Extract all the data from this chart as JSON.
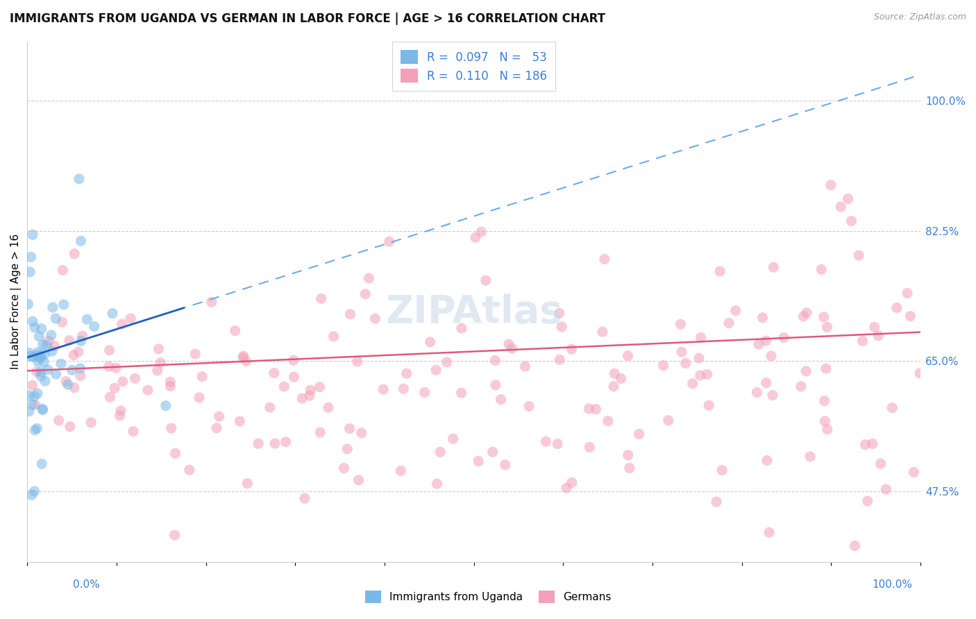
{
  "title": "IMMIGRANTS FROM UGANDA VS GERMAN IN LABOR FORCE | AGE > 16 CORRELATION CHART",
  "source": "Source: ZipAtlas.com",
  "ylabel": "In Labor Force | Age > 16",
  "right_ytick_labels": [
    "100.0%",
    "82.5%",
    "65.0%",
    "47.5%"
  ],
  "right_ytick_values": [
    1.0,
    0.825,
    0.65,
    0.475
  ],
  "uganda_dot_color": "#7ab8e8",
  "german_dot_color": "#f4a0b8",
  "uganda_trend_solid_color": "#2060c0",
  "uganda_trend_dash_color": "#6aace8",
  "german_trend_color": "#e05878",
  "watermark": "ZIPAtlas",
  "uganda_N": 53,
  "german_N": 186,
  "xlim": [
    0.0,
    1.0
  ],
  "ylim": [
    0.38,
    1.08
  ],
  "seed": 7
}
